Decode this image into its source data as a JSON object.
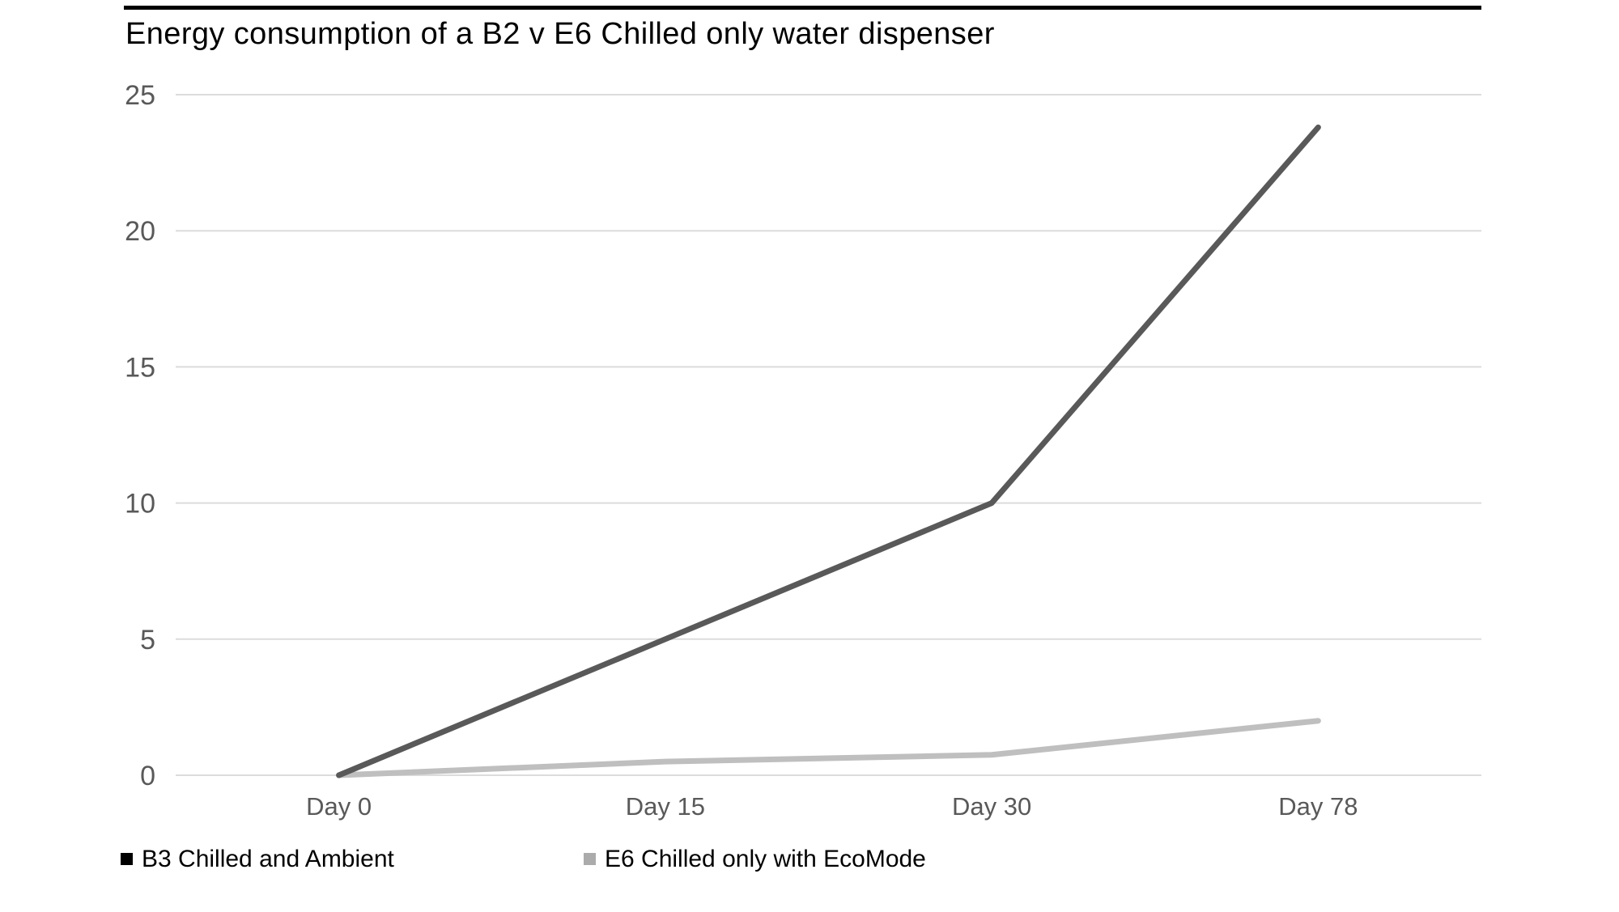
{
  "header": {
    "title": "Energy consumption of a B2 v E6 Chilled only water dispenser"
  },
  "colors": {
    "title_text": "#000000",
    "top_rule": "#000000",
    "gridline": "#dcdcdc",
    "axis_text": "#595959",
    "background": "#ffffff"
  },
  "chart_data": {
    "type": "line",
    "title": "Energy consumption of a B2 v E6 Chilled only water dispenser",
    "categories": [
      "Day 0",
      "Day 15",
      "Day 30",
      "Day 78"
    ],
    "series": [
      {
        "name": "B3 Chilled and Ambient",
        "color": "#595959",
        "values": [
          0,
          5,
          10,
          23.8
        ]
      },
      {
        "name": "E6 Chilled only with EcoMode",
        "color": "#bfbfbf",
        "values": [
          0,
          0.5,
          0.75,
          2
        ]
      }
    ],
    "xlabel": "",
    "ylabel": "",
    "ylim": [
      0,
      25
    ],
    "yticks": [
      0,
      5,
      10,
      15,
      20,
      25
    ],
    "grid": "horizontal",
    "legend_position": "bottom-left"
  },
  "legend": {
    "items": [
      {
        "label": "B3 Chilled and Ambient",
        "swatch_color": "#000000"
      },
      {
        "label": "E6 Chilled only with EcoMode",
        "swatch_color": "#ababab"
      }
    ]
  }
}
